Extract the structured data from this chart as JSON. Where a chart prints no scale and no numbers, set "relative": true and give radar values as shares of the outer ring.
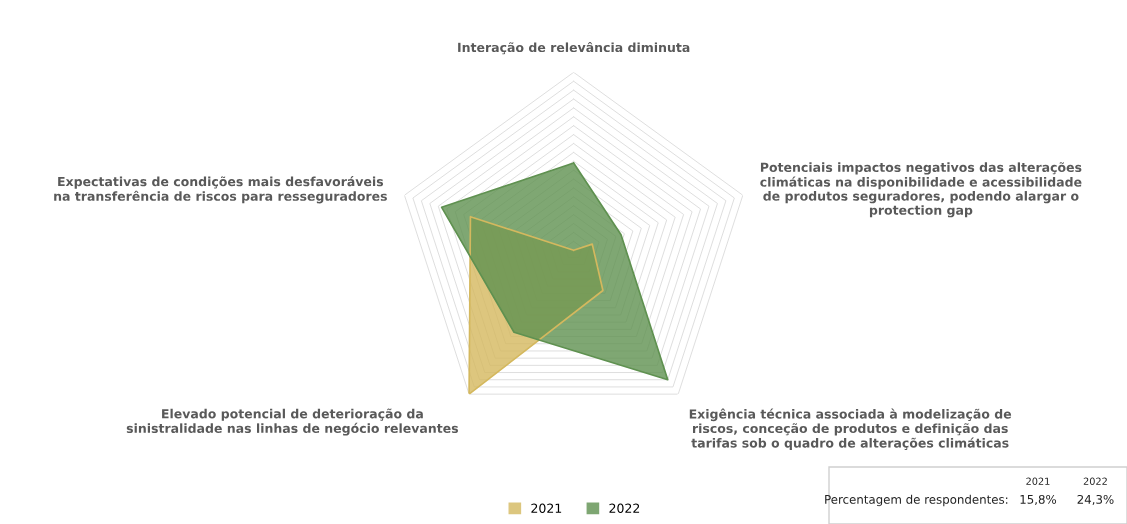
{
  "chart_data": {
    "type": "radar",
    "relative": true,
    "categories": [
      "Interação de relevância diminuta",
      "Potenciais impactos negativos das alterações\nclimáticas na disponibilidade e acessibilidade\nde produtos seguradores, podendo alargar o\nprotection gap",
      "Exigência técnica associada à modelização de\nriscos, conceção de produtos e definição das\ntarifas sob o quadro de alterações climáticas",
      "Elevado potencial de deterioração da\nsinistralidade nas linhas de negócio relevantes",
      "Expectativas de condições mais desfavoráveis\nna transferência de riscos para resseguradores"
    ],
    "series": [
      {
        "name": "2021",
        "color": "#d4b85e",
        "values": [
          0.0,
          0.11,
          0.28,
          1.0,
          0.61
        ]
      },
      {
        "name": "2022",
        "color": "#5f9150",
        "values": [
          0.49,
          0.28,
          0.9,
          0.57,
          0.78
        ]
      }
    ],
    "grid": true,
    "legend": "bottom",
    "annotations": [
      "Percentagem de respondentes:",
      "2021",
      "2022",
      "15,8%",
      "24,3%"
    ]
  }
}
